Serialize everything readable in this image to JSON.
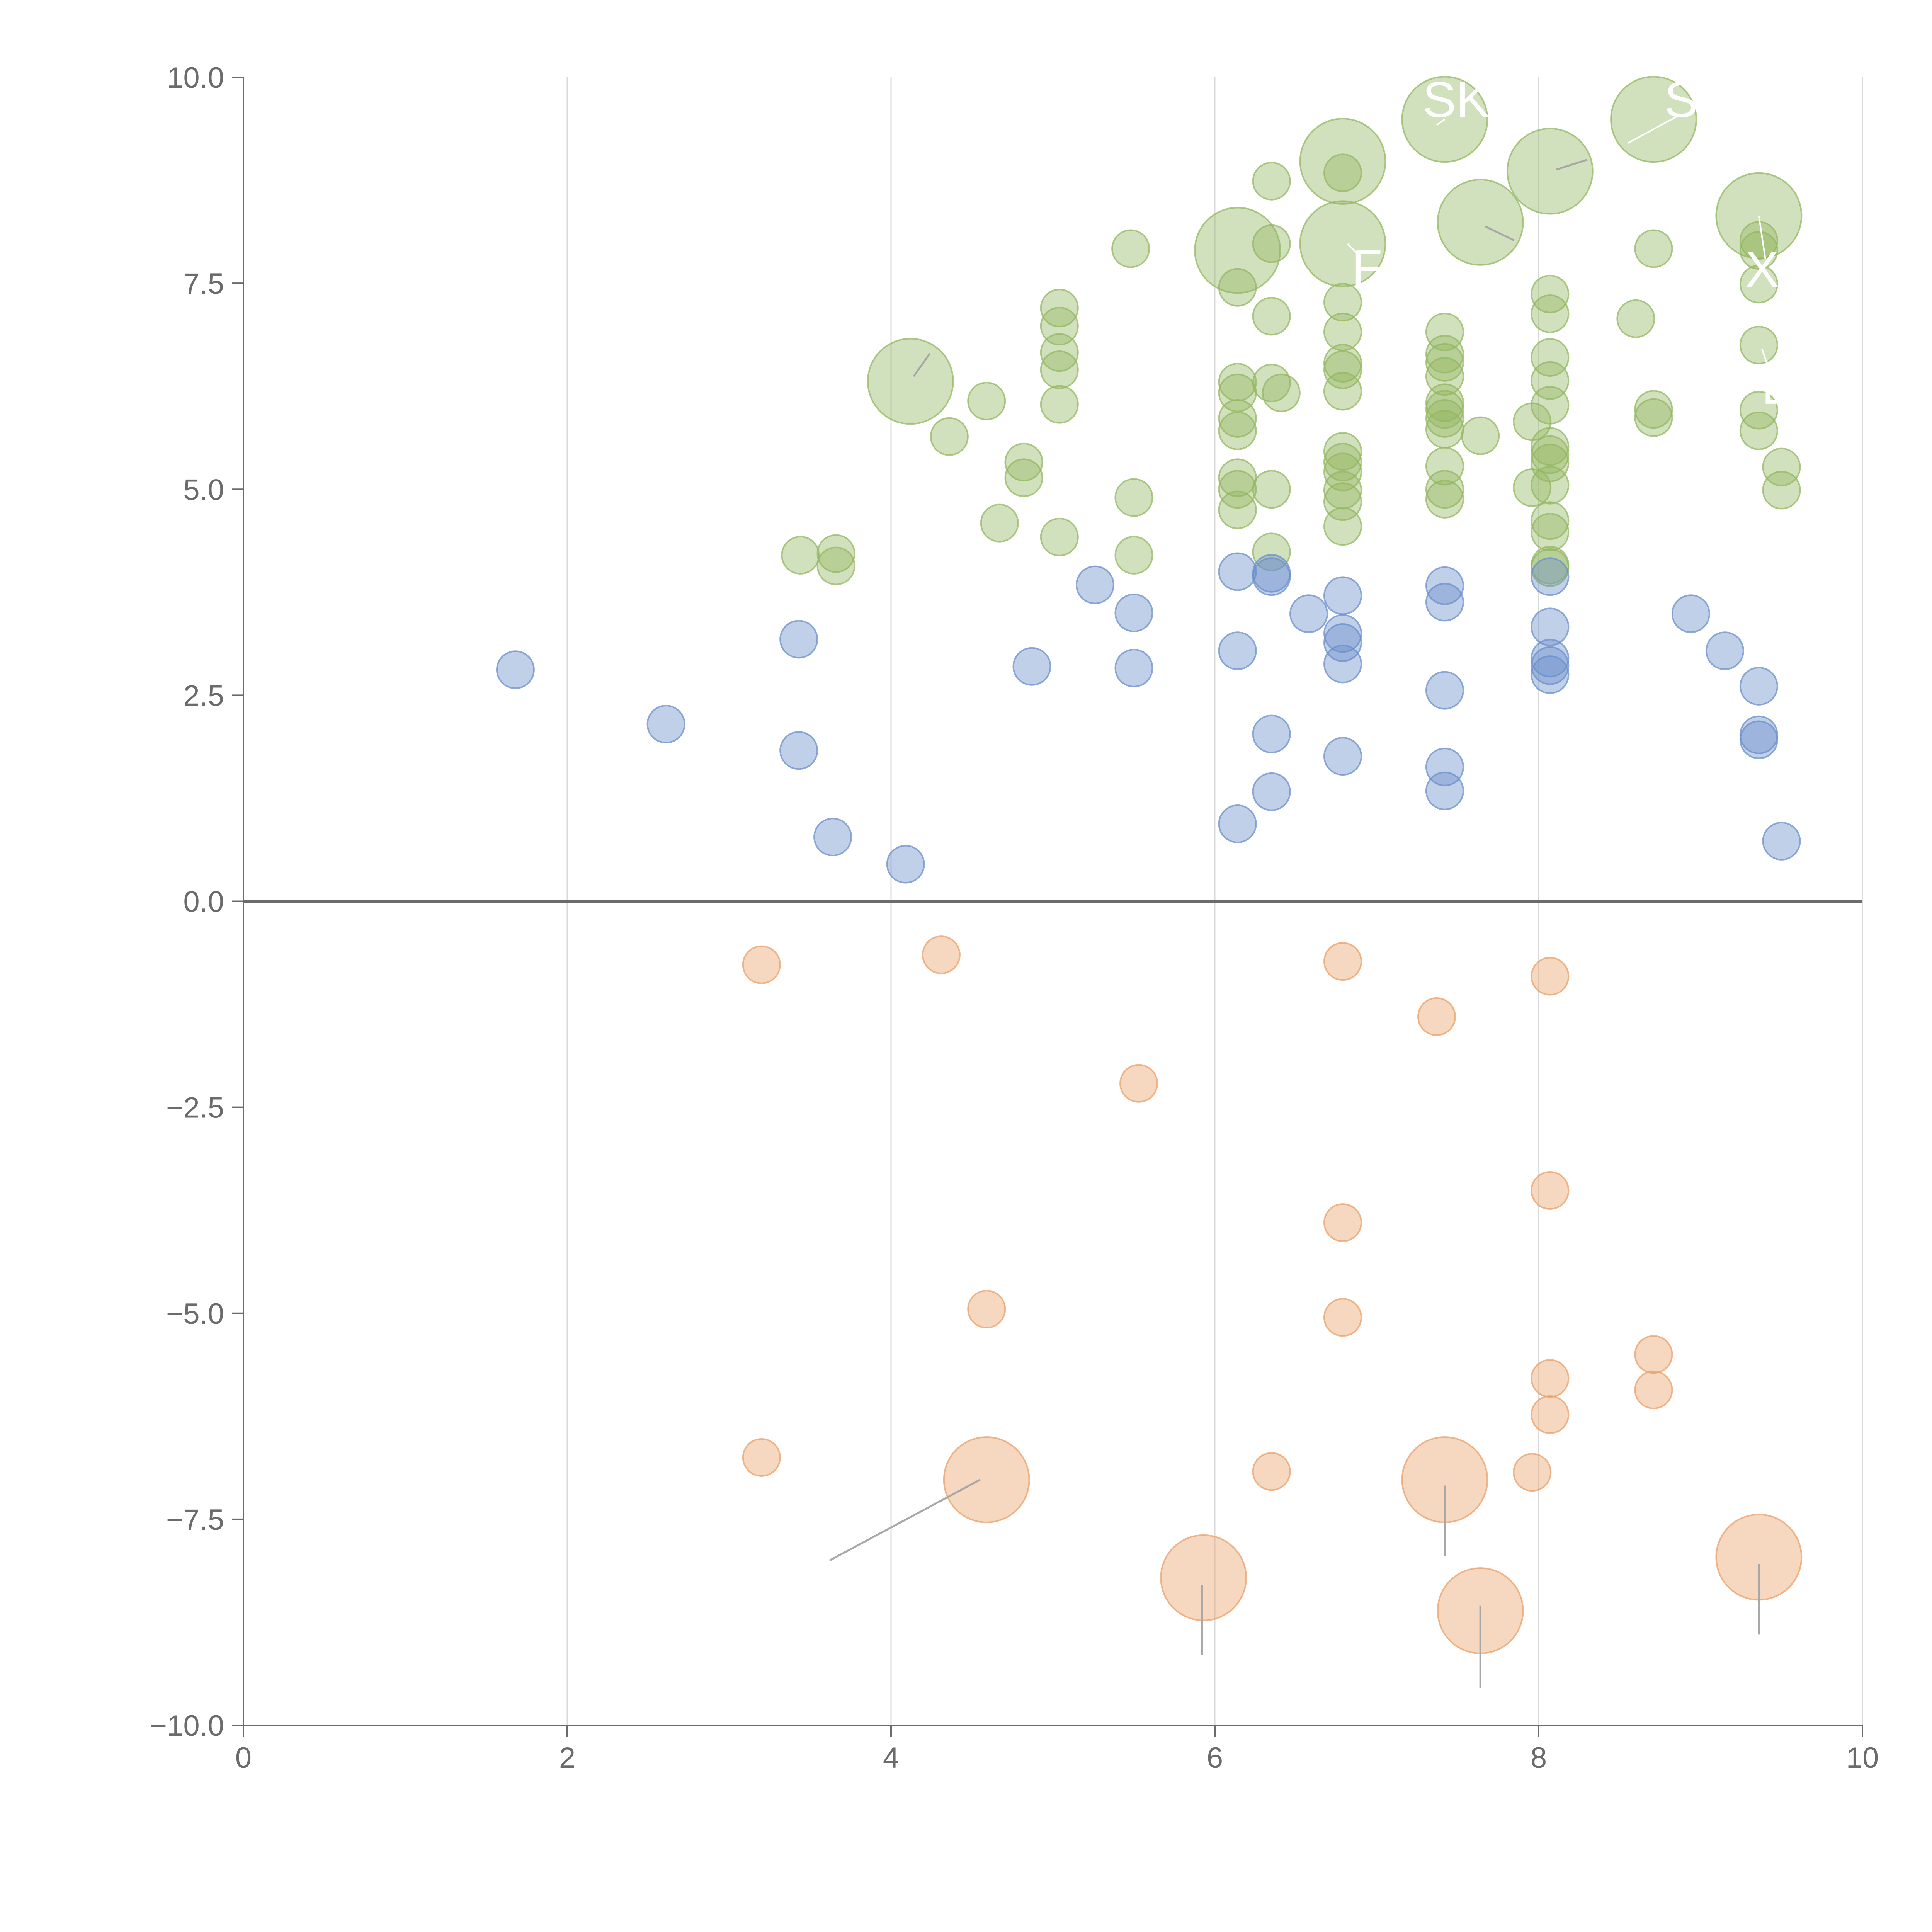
{
  "chart_data": {
    "type": "scatter",
    "title": "",
    "xlabel": "",
    "ylabel": "",
    "xlim": [
      0,
      10
    ],
    "ylim": [
      -10,
      10
    ],
    "x_ticks": [
      "0",
      "2",
      "4",
      "6",
      "8",
      "10"
    ],
    "y_ticks": [
      "−10.0",
      "−7.5",
      "−5.0",
      "−2.5",
      "0.0",
      "2.5",
      "5.0",
      "7.5",
      "10.0"
    ],
    "grid": "vertical",
    "zero_line": true,
    "colors": {
      "green": "#93b761",
      "blue": "#6b8fcb",
      "orange": "#e9a06a"
    },
    "series": [
      {
        "name": "green",
        "points": [
          [
            3.44,
            4.2,
            1
          ],
          [
            3.66,
            4.22,
            1
          ],
          [
            3.66,
            4.07,
            1
          ],
          [
            4.36,
            5.64,
            1
          ],
          [
            4.59,
            6.07,
            1
          ],
          [
            4.67,
            4.59,
            1
          ],
          [
            4.82,
            5.33,
            1
          ],
          [
            4.82,
            5.14,
            1
          ],
          [
            5.04,
            7.2,
            1
          ],
          [
            5.04,
            6.98,
            1
          ],
          [
            5.04,
            6.66,
            1
          ],
          [
            5.04,
            6.45,
            1
          ],
          [
            5.04,
            6.03,
            1
          ],
          [
            5.04,
            4.42,
            1
          ],
          [
            5.48,
            7.92,
            1
          ],
          [
            5.5,
            4.9,
            1
          ],
          [
            5.5,
            4.2,
            1
          ],
          [
            6.14,
            7.45,
            1
          ],
          [
            6.14,
            6.3,
            1
          ],
          [
            6.14,
            6.17,
            1
          ],
          [
            6.14,
            5.86,
            1
          ],
          [
            6.14,
            5.71,
            1
          ],
          [
            6.14,
            5.14,
            1
          ],
          [
            6.14,
            5.0,
            1
          ],
          [
            6.14,
            4.75,
            1
          ],
          [
            6.35,
            8.74,
            1
          ],
          [
            6.35,
            7.98,
            1
          ],
          [
            6.35,
            7.1,
            1
          ],
          [
            6.35,
            6.29,
            1
          ],
          [
            6.35,
            5.0,
            1
          ],
          [
            6.35,
            4.24,
            1
          ],
          [
            6.41,
            6.17,
            1
          ],
          [
            6.79,
            8.84,
            1
          ],
          [
            6.79,
            7.27,
            1
          ],
          [
            6.79,
            6.91,
            1
          ],
          [
            6.79,
            6.53,
            1
          ],
          [
            6.79,
            6.45,
            1
          ],
          [
            6.79,
            6.19,
            1
          ],
          [
            6.79,
            5.46,
            1
          ],
          [
            6.79,
            5.33,
            1
          ],
          [
            6.79,
            5.21,
            1
          ],
          [
            6.79,
            4.99,
            1
          ],
          [
            6.79,
            4.85,
            1
          ],
          [
            6.79,
            4.55,
            1
          ],
          [
            7.42,
            6.91,
            1
          ],
          [
            7.42,
            6.64,
            1
          ],
          [
            7.42,
            6.54,
            1
          ],
          [
            7.42,
            6.37,
            1
          ],
          [
            7.42,
            6.05,
            1
          ],
          [
            7.42,
            5.97,
            1
          ],
          [
            7.42,
            5.86,
            1
          ],
          [
            7.42,
            5.73,
            1
          ],
          [
            7.42,
            5.28,
            1
          ],
          [
            7.42,
            5.0,
            1
          ],
          [
            7.42,
            4.88,
            1
          ],
          [
            7.64,
            5.65,
            1
          ],
          [
            7.96,
            5.82,
            1
          ],
          [
            7.96,
            5.02,
            1
          ],
          [
            8.07,
            7.37,
            1
          ],
          [
            8.07,
            7.13,
            1
          ],
          [
            8.07,
            6.6,
            1
          ],
          [
            8.07,
            6.32,
            1
          ],
          [
            8.07,
            6.02,
            1
          ],
          [
            8.07,
            5.52,
            1
          ],
          [
            8.07,
            5.42,
            1
          ],
          [
            8.07,
            5.32,
            1
          ],
          [
            8.07,
            5.05,
            1
          ],
          [
            8.07,
            4.62,
            1
          ],
          [
            8.07,
            4.48,
            1
          ],
          [
            8.07,
            4.08,
            1
          ],
          [
            8.07,
            4.05,
            1
          ],
          [
            8.6,
            7.07,
            1
          ],
          [
            8.71,
            7.92,
            1
          ],
          [
            8.71,
            5.97,
            1
          ],
          [
            8.71,
            5.87,
            1
          ],
          [
            9.36,
            8.02,
            1
          ],
          [
            9.36,
            7.9,
            1
          ],
          [
            9.36,
            7.49,
            1
          ],
          [
            9.36,
            6.75,
            1
          ],
          [
            9.36,
            5.96,
            1
          ],
          [
            9.36,
            5.71,
            1
          ],
          [
            9.5,
            5.27,
            1
          ],
          [
            9.5,
            4.99,
            1
          ],
          [
            4.12,
            6.31,
            2.3
          ],
          [
            6.14,
            7.9,
            2.3
          ],
          [
            6.79,
            8.98,
            2.3
          ],
          [
            6.79,
            7.98,
            2.3
          ],
          [
            7.42,
            9.49,
            2.3
          ],
          [
            7.64,
            8.24,
            2.3
          ],
          [
            8.07,
            8.86,
            2.3
          ],
          [
            8.71,
            9.49,
            2.3
          ],
          [
            9.36,
            8.32,
            2.3
          ]
        ]
      },
      {
        "name": "blue",
        "points": [
          [
            1.68,
            2.81,
            1
          ],
          [
            2.61,
            2.15,
            1
          ],
          [
            3.43,
            3.18,
            1
          ],
          [
            3.43,
            1.83,
            1
          ],
          [
            3.64,
            0.78,
            1
          ],
          [
            4.09,
            0.45,
            1
          ],
          [
            4.87,
            2.85,
            1
          ],
          [
            5.26,
            3.84,
            1
          ],
          [
            5.5,
            3.5,
            1
          ],
          [
            5.5,
            2.83,
            1
          ],
          [
            6.14,
            4.0,
            1
          ],
          [
            6.14,
            3.04,
            1
          ],
          [
            6.14,
            0.94,
            1
          ],
          [
            6.35,
            3.98,
            1
          ],
          [
            6.35,
            3.94,
            1
          ],
          [
            6.35,
            2.03,
            1
          ],
          [
            6.35,
            1.33,
            1
          ],
          [
            6.58,
            3.49,
            1
          ],
          [
            6.79,
            3.71,
            1
          ],
          [
            6.79,
            3.25,
            1
          ],
          [
            6.79,
            3.14,
            1
          ],
          [
            6.79,
            2.88,
            1
          ],
          [
            6.79,
            1.76,
            1
          ],
          [
            7.42,
            3.83,
            1
          ],
          [
            7.42,
            3.63,
            1
          ],
          [
            7.42,
            2.56,
            1
          ],
          [
            7.42,
            1.63,
            1
          ],
          [
            7.42,
            1.34,
            1
          ],
          [
            8.07,
            3.94,
            1
          ],
          [
            8.07,
            3.33,
            1
          ],
          [
            8.07,
            2.95,
            1
          ],
          [
            8.07,
            2.86,
            1
          ],
          [
            8.07,
            2.75,
            1
          ],
          [
            8.94,
            3.49,
            1
          ],
          [
            9.15,
            3.04,
            1
          ],
          [
            9.36,
            2.61,
            1
          ],
          [
            9.36,
            2.02,
            1
          ],
          [
            9.36,
            1.96,
            1
          ],
          [
            9.5,
            0.73,
            1
          ]
        ]
      },
      {
        "name": "orange",
        "points": [
          [
            3.2,
            -0.77,
            1
          ],
          [
            3.2,
            -6.75,
            1
          ],
          [
            4.31,
            -0.65,
            1
          ],
          [
            4.59,
            -4.95,
            1
          ],
          [
            5.53,
            -2.21,
            1
          ],
          [
            6.35,
            -6.92,
            1
          ],
          [
            6.79,
            -0.73,
            1
          ],
          [
            6.79,
            -3.9,
            1
          ],
          [
            6.79,
            -5.05,
            1
          ],
          [
            7.37,
            -1.4,
            1
          ],
          [
            7.96,
            -6.93,
            1
          ],
          [
            8.07,
            -0.91,
            1
          ],
          [
            8.07,
            -3.51,
            1
          ],
          [
            8.07,
            -5.79,
            1
          ],
          [
            8.07,
            -6.23,
            1
          ],
          [
            8.71,
            -5.5,
            1
          ],
          [
            8.71,
            -5.93,
            1
          ],
          [
            4.59,
            -7.02,
            2.3
          ],
          [
            5.93,
            -8.21,
            2.3
          ],
          [
            7.42,
            -7.02,
            2.3
          ],
          [
            7.64,
            -8.61,
            2.3
          ],
          [
            9.36,
            -7.96,
            2.3
          ]
        ]
      }
    ],
    "labels": [
      {
        "text": "SK",
        "x": 7.49,
        "y": 9.73,
        "lx1": 7.37,
        "ly1": 9.42,
        "lx2": 7.42,
        "ly2": 9.49
      },
      {
        "text": "S",
        "x": 8.88,
        "y": 9.73,
        "lx1": 8.55,
        "ly1": 9.2,
        "lx2": 8.85,
        "ly2": 9.52
      },
      {
        "text": "F",
        "x": 6.94,
        "y": 7.69,
        "lx1": 6.9,
        "ly1": 7.82,
        "lx2": 6.82,
        "ly2": 7.98
      },
      {
        "text": "X",
        "x": 9.38,
        "y": 7.67,
        "lx1": 9.4,
        "ly1": 7.8,
        "lx2": 9.36,
        "ly2": 8.32
      },
      {
        "text": "E",
        "x": 9.48,
        "y": 6.25,
        "lx1": 9.45,
        "ly1": 6.3,
        "lx2": 9.38,
        "ly2": 6.7
      }
    ],
    "leaders": [
      {
        "x1": 4.14,
        "y1": 6.37,
        "x2": 4.24,
        "y2": 6.65
      },
      {
        "x1": 8.11,
        "y1": 8.88,
        "x2": 8.3,
        "y2": 9.0
      },
      {
        "x1": 7.67,
        "y1": 8.19,
        "x2": 7.85,
        "y2": 8.02
      },
      {
        "x1": 3.62,
        "y1": -8.0,
        "x2": 4.55,
        "y2": -7.02
      },
      {
        "x1": 5.92,
        "y1": -9.15,
        "x2": 5.92,
        "y2": -8.3
      },
      {
        "x1": 7.42,
        "y1": -7.09,
        "x2": 7.42,
        "y2": -7.95
      },
      {
        "x1": 7.64,
        "y1": -8.55,
        "x2": 7.64,
        "y2": -9.55
      },
      {
        "x1": 9.36,
        "y1": -8.04,
        "x2": 9.36,
        "y2": -8.9
      }
    ]
  }
}
